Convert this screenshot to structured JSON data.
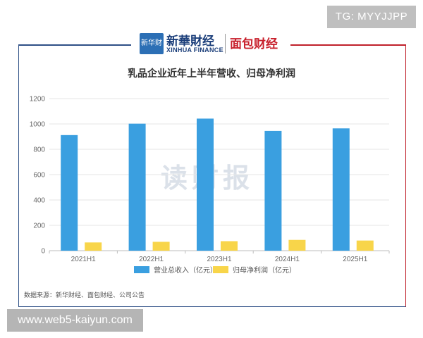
{
  "header": {
    "xinhua_logo_box": "新华财经",
    "xinhua_cn": "新華財经",
    "xinhua_en": "XINHUA FINANCE",
    "mianbao": "面包财经"
  },
  "watermarks": {
    "top_right": "TG: MYYJJPP",
    "bottom_left": "www.web5-kaiyun.com",
    "center": "读财报"
  },
  "colors": {
    "revenue": "#3a9fe0",
    "profit": "#f8d54a",
    "frame_blue": "#2e4f86",
    "frame_red": "#c0202a"
  },
  "chart_data": {
    "type": "bar",
    "title": "乳品企业近年上半年营收、归母净利润",
    "categories": [
      "2021H1",
      "2022H1",
      "2023H1",
      "2024H1",
      "2025H1"
    ],
    "series": [
      {
        "name": "营业总收入（亿元）",
        "values": [
          912,
          1002,
          1042,
          945,
          965
        ]
      },
      {
        "name": "归母净利润（亿元）",
        "values": [
          65,
          70,
          75,
          85,
          80
        ]
      }
    ],
    "ylim": [
      0,
      1200
    ],
    "yticks": [
      0,
      200,
      400,
      600,
      800,
      1000,
      1200
    ],
    "grid": true,
    "legend_position": "bottom"
  },
  "footer": {
    "source": "数据来源：新华财经、面包财经、公司公告"
  }
}
